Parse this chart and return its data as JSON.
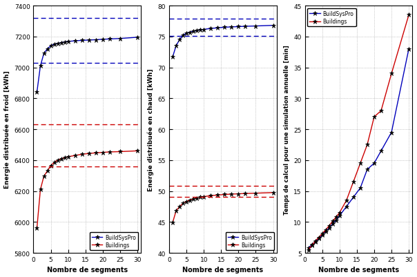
{
  "x": [
    1,
    2,
    3,
    4,
    5,
    6,
    7,
    8,
    9,
    10,
    12,
    14,
    16,
    18,
    20,
    22,
    25,
    30
  ],
  "plot1": {
    "bsp": [
      6840,
      7010,
      7090,
      7120,
      7140,
      7150,
      7155,
      7160,
      7165,
      7168,
      7172,
      7175,
      7177,
      7179,
      7182,
      7184,
      7187,
      7195
    ],
    "bld": [
      5960,
      6210,
      6295,
      6330,
      6365,
      6385,
      6400,
      6408,
      6415,
      6422,
      6430,
      6438,
      6443,
      6447,
      6450,
      6453,
      6455,
      6460
    ],
    "hline_bsp1": 7320,
    "hline_bsp2": 7030,
    "hline_bld1": 6630,
    "hline_bld2": 6360,
    "ylabel": "Energie distribuée en froid [kWh]",
    "ylim": [
      5800,
      7400
    ],
    "yticks": [
      5800,
      6000,
      6200,
      6400,
      6600,
      6800,
      7000,
      7200,
      7400
    ]
  },
  "plot2": {
    "bsp": [
      71.7,
      73.5,
      74.5,
      75.2,
      75.55,
      75.7,
      75.85,
      75.95,
      76.1,
      76.15,
      76.3,
      76.4,
      76.5,
      76.55,
      76.6,
      76.65,
      76.7,
      76.8
    ],
    "bld": [
      44.9,
      46.8,
      47.5,
      48.0,
      48.3,
      48.55,
      48.7,
      48.85,
      49.0,
      49.1,
      49.25,
      49.35,
      49.45,
      49.5,
      49.55,
      49.6,
      49.65,
      49.75
    ],
    "hline_bsp1": 77.9,
    "hline_bsp2": 75.1,
    "hline_bld1": 50.8,
    "hline_bld2": 49.0,
    "ylabel": "Energie distribuée en chaud [kWh]",
    "ylim": [
      40,
      80
    ],
    "yticks": [
      40,
      45,
      50,
      55,
      60,
      65,
      70,
      75,
      80
    ]
  },
  "plot3": {
    "bsp": [
      5.8,
      6.3,
      6.8,
      7.3,
      7.9,
      8.5,
      9.0,
      9.7,
      10.3,
      11.0,
      12.5,
      14.0,
      15.5,
      18.5,
      19.5,
      21.5,
      24.5,
      38.0
    ],
    "bld": [
      5.5,
      6.2,
      6.9,
      7.5,
      8.1,
      8.7,
      9.4,
      10.1,
      10.8,
      11.5,
      13.5,
      16.5,
      19.5,
      22.5,
      27.0,
      28.0,
      34.0,
      43.5
    ],
    "ylabel": "Temps de calcul pour une simulation annuelle [min]",
    "ylim": [
      5,
      45
    ],
    "yticks": [
      5,
      10,
      15,
      20,
      25,
      30,
      35,
      40,
      45
    ]
  },
  "xlabel": "Nombre de segments",
  "color_bsp": "#0000bb",
  "color_bld": "#cc0000",
  "bg_color": "#ffffff",
  "grid_color": "#888888",
  "legend_bsp": "BuildSysPro",
  "legend_bld": "Buildings",
  "xticks": [
    0,
    5,
    10,
    15,
    20,
    25,
    30
  ],
  "xlim": [
    0,
    31
  ]
}
